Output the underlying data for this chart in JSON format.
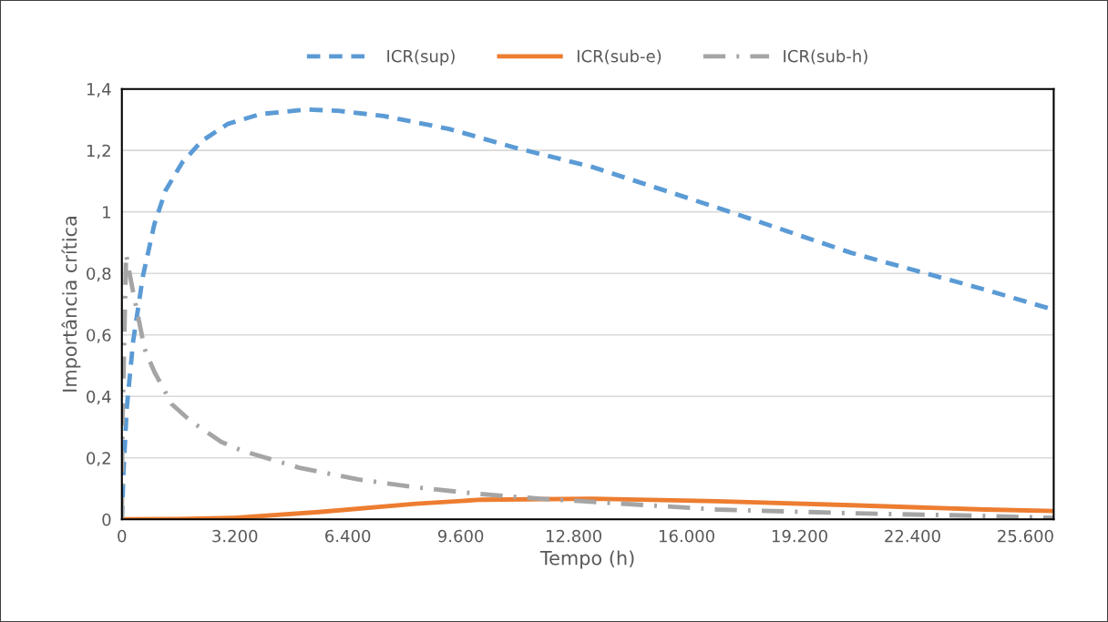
{
  "chart_data": {
    "type": "line",
    "xlabel": "Tempo (h)",
    "ylabel": "Importância crítica",
    "xlim": [
      0,
      26400
    ],
    "ylim": [
      0,
      1.4
    ],
    "xticks": [
      0,
      {
        "value": 3200,
        "label": "3.200"
      },
      {
        "value": 6400,
        "label": "6.400"
      },
      {
        "value": 9600,
        "label": "9.600"
      },
      {
        "value": 12800,
        "label": "12.800"
      },
      {
        "value": 16000,
        "label": "16.000"
      },
      {
        "value": 19200,
        "label": "19.200"
      },
      {
        "value": 22400,
        "label": "22.400"
      },
      {
        "value": 25600,
        "label": "25.600"
      }
    ],
    "yticks": [
      0,
      {
        "value": 0.2,
        "label": "0,2"
      },
      {
        "value": 0.4,
        "label": "0,4"
      },
      {
        "value": 0.6,
        "label": "0,6"
      },
      {
        "value": 0.8,
        "label": "0,8"
      },
      1,
      {
        "value": 1.2,
        "label": "1,2"
      },
      {
        "value": 1.4,
        "label": "1,4"
      }
    ],
    "grid": "y",
    "legend": "top",
    "marker": "none",
    "series": [
      {
        "name": "ICR(sup)",
        "color": "#5b9bd5",
        "line_style": "dashed",
        "x": [
          0,
          45,
          137,
          320,
          594,
          920,
          1240,
          1705,
          2258,
          2996,
          3920,
          5210,
          6125,
          7415,
          9270,
          11108,
          13330,
          16870,
          20660,
          24460,
          26400
        ],
        "values": [
          0,
          0.15,
          0.36,
          0.58,
          0.79,
          0.96,
          1.07,
          1.16,
          1.23,
          1.286,
          1.318,
          1.333,
          1.329,
          1.312,
          1.27,
          1.21,
          1.146,
          1.014,
          0.867,
          0.747,
          0.682
        ]
      },
      {
        "name": "ICR(sub-e)",
        "color": "#ed7d31",
        "line_style": "solid",
        "x": [
          0,
          1600,
          3180,
          5580,
          8340,
          10190,
          13330,
          16870,
          20660,
          24460,
          26400
        ],
        "values": [
          0,
          0.001,
          0.005,
          0.024,
          0.051,
          0.064,
          0.067,
          0.059,
          0.046,
          0.032,
          0.027
        ]
      },
      {
        "name": "ICR(sub-h)",
        "color": "#a5a5a5",
        "line_style": "dashdot",
        "x": [
          0,
          15,
          119,
          274,
          645,
          920,
          1420,
          1937,
          2815,
          3410,
          5025,
          6690,
          8340,
          10100,
          11860,
          13070,
          16870,
          20660,
          24460,
          26400
        ],
        "values": [
          0,
          0.3,
          0.862,
          0.766,
          0.554,
          0.48,
          0.374,
          0.321,
          0.252,
          0.223,
          0.168,
          0.13,
          0.104,
          0.083,
          0.067,
          0.059,
          0.032,
          0.02,
          0.011,
          0.005
        ]
      }
    ]
  }
}
